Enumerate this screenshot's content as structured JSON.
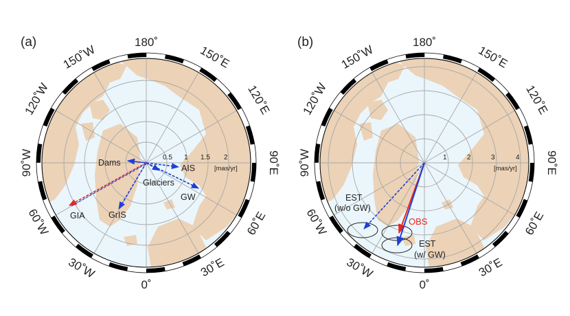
{
  "panels": [
    {
      "id": "a",
      "label": "(a)",
      "lon_labels": [
        "180˚",
        "150˚E",
        "120˚E",
        "90˚E",
        "60˚E",
        "30˚E",
        "0˚",
        "30˚W",
        "60˚W",
        "90˚W",
        "120˚W",
        "150˚W"
      ],
      "ring_labels": [
        "0.5",
        "1",
        "1.5",
        "2"
      ],
      "unit": "[mas/yr]",
      "vectors": [
        {
          "label": "Dams",
          "style": "solid",
          "color": "#1f3fd6"
        },
        {
          "label": "AIS",
          "style": "dashed",
          "color": "#1f3fd6"
        },
        {
          "label": "Glaciers",
          "style": "dashed",
          "color": "#1f3fd6"
        },
        {
          "label": "GW",
          "style": "dashed",
          "color": "#1f3fd6"
        },
        {
          "label": "GrIS",
          "style": "dashed",
          "color": "#1f3fd6"
        },
        {
          "label": "GIA",
          "style": "dashed",
          "color": "#e8261f"
        }
      ]
    },
    {
      "id": "b",
      "label": "(b)",
      "lon_labels": [
        "180˚",
        "150˚E",
        "120˚E",
        "90˚E",
        "60˚E",
        "30˚E",
        "0˚",
        "30˚W",
        "60˚W",
        "90˚W",
        "120˚W",
        "150˚W"
      ],
      "ring_labels": [
        "1",
        "2",
        "3",
        "4"
      ],
      "unit": "[mas/yr]",
      "vectors": [
        {
          "label": "OBS",
          "style": "solid",
          "color": "#e8261f"
        },
        {
          "label": "EST (w/ GW)",
          "line1": "EST",
          "line2": "(w/ GW)",
          "style": "solid",
          "color": "#1f3fd6"
        },
        {
          "label": "EST (w/o GW)",
          "line1": "EST",
          "line2": "(w/o GW)",
          "style": "dashed",
          "color": "#1f3fd6"
        }
      ]
    }
  ],
  "colors": {
    "land": "#ecd2b6",
    "ocean": "#eaf6fb",
    "grid": "#a8a8a8",
    "blue": "#1f3fd6",
    "red": "#e8261f",
    "frame": "#000000"
  }
}
